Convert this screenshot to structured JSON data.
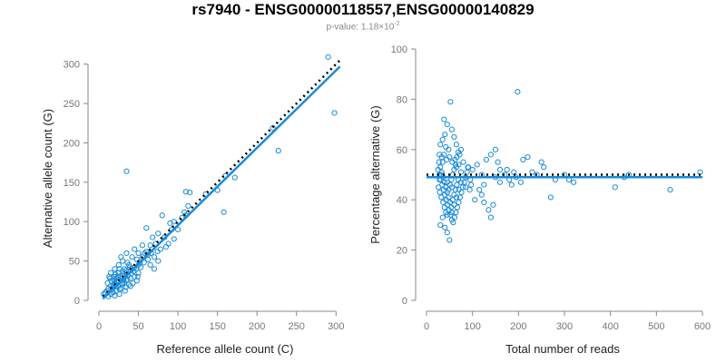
{
  "title": "rs7940 - ENSG00000118557,ENSG00000140829",
  "subtitle": {
    "prefix": "p-value: 1.18×10",
    "exponent": "-2"
  },
  "colors": {
    "points": "#1a8bd8",
    "fit": "#1a8bd8",
    "reference": "#000000",
    "axis": "#888888"
  },
  "chart_data": [
    {
      "type": "scatter",
      "xlabel": "Reference allele count (C)",
      "ylabel": "Alternative allele count (G)",
      "xlim": [
        0,
        310
      ],
      "ylim": [
        0,
        310
      ],
      "xticks": [
        0,
        50,
        100,
        150,
        200,
        250,
        300
      ],
      "yticks": [
        0,
        50,
        100,
        150,
        200,
        250,
        300
      ],
      "grid": false,
      "reference_line": {
        "style": "dotted",
        "x": [
          5,
          305
        ],
        "y": [
          5,
          305
        ]
      },
      "fit_line": {
        "style": "solid",
        "x": [
          5,
          305
        ],
        "y": [
          2,
          297
        ]
      },
      "points": [
        [
          290,
          309
        ],
        [
          298,
          238
        ],
        [
          220,
          219
        ],
        [
          227,
          190
        ],
        [
          160,
          158
        ],
        [
          158,
          112
        ],
        [
          172,
          156
        ],
        [
          150,
          140
        ],
        [
          135,
          135
        ],
        [
          110,
          138
        ],
        [
          115,
          137
        ],
        [
          113,
          120
        ],
        [
          110,
          108
        ],
        [
          35,
          164
        ],
        [
          108,
          112
        ],
        [
          95,
          100
        ],
        [
          80,
          108
        ],
        [
          90,
          98
        ],
        [
          75,
          85
        ],
        [
          68,
          80
        ],
        [
          92,
          90
        ],
        [
          95,
          78
        ],
        [
          85,
          68
        ],
        [
          88,
          72
        ],
        [
          78,
          65
        ],
        [
          72,
          72
        ],
        [
          65,
          70
        ],
        [
          60,
          92
        ],
        [
          62,
          58
        ],
        [
          58,
          60
        ],
        [
          70,
          55
        ],
        [
          75,
          50
        ],
        [
          55,
          55
        ],
        [
          52,
          48
        ],
        [
          50,
          45
        ],
        [
          48,
          52
        ],
        [
          45,
          42
        ],
        [
          42,
          40
        ],
        [
          40,
          38
        ],
        [
          38,
          45
        ],
        [
          35,
          35
        ],
        [
          33,
          30
        ],
        [
          30,
          33
        ],
        [
          28,
          28
        ],
        [
          25,
          25
        ],
        [
          22,
          28
        ],
        [
          20,
          22
        ],
        [
          18,
          20
        ],
        [
          15,
          18
        ],
        [
          12,
          15
        ],
        [
          10,
          12
        ],
        [
          8,
          10
        ],
        [
          6,
          8
        ],
        [
          30,
          20
        ],
        [
          25,
          35
        ],
        [
          20,
          30
        ],
        [
          35,
          25
        ],
        [
          40,
          28
        ],
        [
          45,
          30
        ],
        [
          38,
          20
        ],
        [
          28,
          15
        ],
        [
          22,
          12
        ],
        [
          18,
          10
        ],
        [
          15,
          8
        ],
        [
          12,
          5
        ],
        [
          32,
          40
        ],
        [
          36,
          48
        ],
        [
          42,
          55
        ],
        [
          30,
          50
        ],
        [
          25,
          45
        ],
        [
          20,
          40
        ],
        [
          15,
          35
        ],
        [
          28,
          55
        ],
        [
          35,
          60
        ],
        [
          45,
          65
        ],
        [
          50,
          60
        ],
        [
          55,
          70
        ],
        [
          60,
          62
        ],
        [
          65,
          45
        ],
        [
          70,
          40
        ],
        [
          50,
          35
        ],
        [
          48,
          25
        ],
        [
          40,
          18
        ],
        [
          33,
          12
        ],
        [
          26,
          8
        ],
        [
          20,
          6
        ],
        [
          17,
          14
        ],
        [
          24,
          18
        ],
        [
          29,
          22
        ],
        [
          31,
          26
        ],
        [
          27,
          31
        ],
        [
          23,
          24
        ],
        [
          19,
          26
        ],
        [
          16,
          24
        ],
        [
          14,
          28
        ],
        [
          11,
          22
        ],
        [
          13,
          30
        ],
        [
          21,
          33
        ],
        [
          34,
          38
        ],
        [
          37,
          32
        ],
        [
          41,
          34
        ],
        [
          44,
          37
        ],
        [
          47,
          40
        ],
        [
          39,
          42
        ],
        [
          36,
          27
        ],
        [
          32,
          22
        ],
        [
          30,
          37
        ],
        [
          26,
          40
        ],
        [
          24,
          30
        ],
        [
          18,
          16
        ],
        [
          22,
          20
        ],
        [
          26,
          14
        ],
        [
          34,
          17
        ],
        [
          43,
          22
        ],
        [
          49,
          30
        ],
        [
          53,
          42
        ],
        [
          57,
          48
        ],
        [
          62,
          52
        ],
        [
          66,
          60
        ],
        [
          74,
          62
        ],
        [
          83,
          80
        ],
        [
          100,
          90
        ],
        [
          105,
          105
        ]
      ]
    },
    {
      "type": "scatter",
      "xlabel": "Total number of reads",
      "ylabel": "Percentage alternative (G)",
      "xlim": [
        0,
        600
      ],
      "ylim": [
        0,
        100
      ],
      "xticks": [
        0,
        100,
        200,
        300,
        400,
        500,
        600
      ],
      "yticks": [
        0,
        20,
        40,
        60,
        80,
        100
      ],
      "grid": false,
      "reference_line": {
        "style": "dotted",
        "y": 50
      },
      "fit_line": {
        "style": "solid",
        "y": 49
      },
      "points": [
        [
          52,
          79
        ],
        [
          198,
          83
        ],
        [
          38,
          72
        ],
        [
          45,
          70
        ],
        [
          55,
          68
        ],
        [
          40,
          66
        ],
        [
          35,
          64
        ],
        [
          60,
          65
        ],
        [
          30,
          62
        ],
        [
          42,
          61
        ],
        [
          48,
          60
        ],
        [
          65,
          62
        ],
        [
          75,
          60
        ],
        [
          28,
          58
        ],
        [
          33,
          57
        ],
        [
          38,
          58
        ],
        [
          44,
          56
        ],
        [
          50,
          57
        ],
        [
          56,
          55
        ],
        [
          62,
          56
        ],
        [
          70,
          54
        ],
        [
          80,
          55
        ],
        [
          90,
          53
        ],
        [
          100,
          52
        ],
        [
          110,
          54
        ],
        [
          120,
          50
        ],
        [
          130,
          56
        ],
        [
          140,
          58
        ],
        [
          150,
          60
        ],
        [
          155,
          55
        ],
        [
          160,
          52
        ],
        [
          170,
          50
        ],
        [
          180,
          48
        ],
        [
          190,
          51
        ],
        [
          210,
          56
        ],
        [
          220,
          57
        ],
        [
          230,
          51
        ],
        [
          240,
          50
        ],
        [
          250,
          55
        ],
        [
          255,
          53
        ],
        [
          270,
          41
        ],
        [
          280,
          48
        ],
        [
          300,
          50
        ],
        [
          310,
          48
        ],
        [
          320,
          47
        ],
        [
          410,
          45
        ],
        [
          430,
          49
        ],
        [
          440,
          50
        ],
        [
          530,
          44
        ],
        [
          595,
          51
        ],
        [
          25,
          52
        ],
        [
          28,
          50
        ],
        [
          31,
          48
        ],
        [
          34,
          46
        ],
        [
          37,
          44
        ],
        [
          40,
          42
        ],
        [
          43,
          40
        ],
        [
          46,
          38
        ],
        [
          49,
          36
        ],
        [
          52,
          34
        ],
        [
          55,
          32
        ],
        [
          58,
          31
        ],
        [
          61,
          33
        ],
        [
          64,
          35
        ],
        [
          67,
          37
        ],
        [
          70,
          39
        ],
        [
          73,
          41
        ],
        [
          76,
          43
        ],
        [
          79,
          45
        ],
        [
          82,
          47
        ],
        [
          85,
          49
        ],
        [
          88,
          51
        ],
        [
          91,
          53
        ],
        [
          94,
          44
        ],
        [
          97,
          46
        ],
        [
          30,
          30
        ],
        [
          35,
          33
        ],
        [
          40,
          29
        ],
        [
          45,
          27
        ],
        [
          50,
          24
        ],
        [
          55,
          35
        ],
        [
          60,
          38
        ],
        [
          65,
          41
        ],
        [
          70,
          44
        ],
        [
          75,
          47
        ],
        [
          26,
          45
        ],
        [
          29,
          43
        ],
        [
          32,
          41
        ],
        [
          36,
          39
        ],
        [
          39,
          37
        ],
        [
          42,
          35
        ],
        [
          45,
          34
        ],
        [
          48,
          44
        ],
        [
          51,
          46
        ],
        [
          54,
          48
        ],
        [
          57,
          50
        ],
        [
          60,
          52
        ],
        [
          63,
          54
        ],
        [
          66,
          57
        ],
        [
          69,
          59
        ],
        [
          72,
          58
        ],
        [
          27,
          55
        ],
        [
          30,
          53
        ],
        [
          33,
          51
        ],
        [
          36,
          49
        ],
        [
          39,
          47
        ],
        [
          42,
          45
        ],
        [
          45,
          43
        ],
        [
          48,
          41
        ],
        [
          51,
          39
        ],
        [
          54,
          37
        ],
        [
          57,
          40
        ],
        [
          60,
          42
        ],
        [
          63,
          44
        ],
        [
          66,
          46
        ],
        [
          69,
          48
        ],
        [
          120,
          42
        ],
        [
          125,
          39
        ],
        [
          135,
          36
        ],
        [
          140,
          33
        ],
        [
          145,
          38
        ],
        [
          105,
          40
        ],
        [
          115,
          44
        ],
        [
          125,
          46
        ],
        [
          95,
          48
        ],
        [
          85,
          45
        ],
        [
          75,
          51
        ],
        [
          65,
          53
        ],
        [
          55,
          45
        ],
        [
          45,
          47
        ],
        [
          35,
          55
        ],
        [
          28,
          48
        ],
        [
          32,
          50
        ],
        [
          150,
          49
        ],
        [
          160,
          47
        ],
        [
          175,
          52
        ],
        [
          185,
          46
        ],
        [
          195,
          49
        ],
        [
          205,
          47
        ]
      ]
    }
  ]
}
